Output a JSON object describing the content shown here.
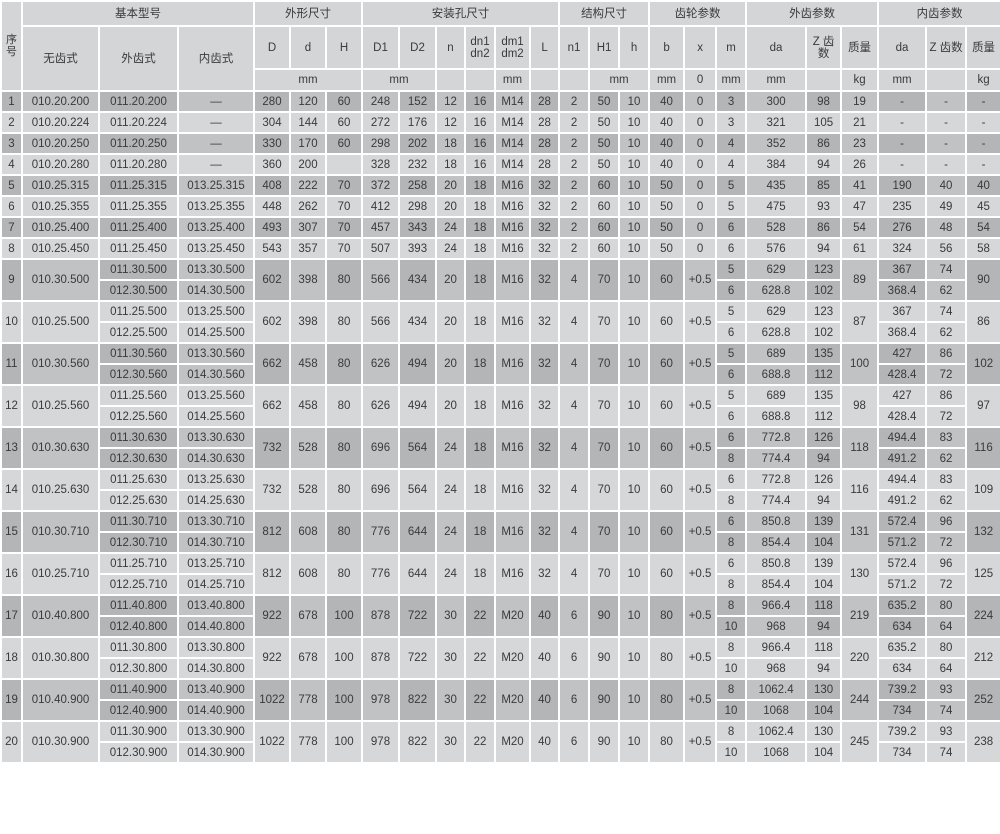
{
  "header": {
    "no": "序号",
    "groups": {
      "basic": "基本型号",
      "outline": "外形尺寸",
      "mounting": "安装孔尺寸",
      "structure": "结构尺寸",
      "gear": "齿轮参数",
      "external": "外齿参数",
      "internal": "内齿参数"
    },
    "cols": {
      "plain": "无齿式",
      "ext": "外齿式",
      "int": "内齿式",
      "D": "D",
      "d": "d",
      "H": "H",
      "D1": "D1",
      "D2": "D2",
      "n": "n",
      "dn": "dn1 dn2",
      "dm": "dm1 dm2",
      "L": "L",
      "n1": "n1",
      "H1": "H1",
      "h": "h",
      "b": "b",
      "x": "x",
      "m": "m",
      "eda": "da",
      "ez": "Z 齿数",
      "emass": "质量",
      "ida": "da",
      "iz": "Z 齿数",
      "imass": "质量"
    },
    "units": {
      "outline": "mm",
      "mounting": "mm",
      "dm": "mm",
      "structure": "mm",
      "b": "mm",
      "x": "0",
      "m": "mm",
      "eda": "mm",
      "emass": "kg",
      "ida": "mm",
      "imass": "kg"
    }
  },
  "rows": [
    {
      "no": "1",
      "plain": "010.20.200",
      "ext": [
        "011.20.200"
      ],
      "int": [
        "—"
      ],
      "D": "280",
      "d": "120",
      "H": "60",
      "D1": "248",
      "D2": "152",
      "n": "12",
      "dn": "16",
      "dm": "M14",
      "L": "28",
      "n1": "2",
      "H1": "50",
      "h": "10",
      "b": "40",
      "x": "0",
      "m": [
        "3"
      ],
      "eda": [
        "300"
      ],
      "ez": [
        "98"
      ],
      "emass": "19",
      "ida": [
        "-"
      ],
      "iz": [
        "-"
      ],
      "imass": "-"
    },
    {
      "no": "2",
      "plain": "010.20.224",
      "ext": [
        "011.20.224"
      ],
      "int": [
        "—"
      ],
      "D": "304",
      "d": "144",
      "H": "60",
      "D1": "272",
      "D2": "176",
      "n": "12",
      "dn": "16",
      "dm": "M14",
      "L": "28",
      "n1": "2",
      "H1": "50",
      "h": "10",
      "b": "40",
      "x": "0",
      "m": [
        "3"
      ],
      "eda": [
        "321"
      ],
      "ez": [
        "105"
      ],
      "emass": "21",
      "ida": [
        "-"
      ],
      "iz": [
        "-"
      ],
      "imass": "-"
    },
    {
      "no": "3",
      "plain": "010.20.250",
      "ext": [
        "011.20.250"
      ],
      "int": [
        "—"
      ],
      "D": "330",
      "d": "170",
      "H": "60",
      "D1": "298",
      "D2": "202",
      "n": "18",
      "dn": "16",
      "dm": "M14",
      "L": "28",
      "n1": "2",
      "H1": "50",
      "h": "10",
      "b": "40",
      "x": "0",
      "m": [
        "4"
      ],
      "eda": [
        "352"
      ],
      "ez": [
        "86"
      ],
      "emass": "23",
      "ida": [
        "-"
      ],
      "iz": [
        "-"
      ],
      "imass": "-"
    },
    {
      "no": "4",
      "plain": "010.20.280",
      "ext": [
        "011.20.280"
      ],
      "int": [
        "—"
      ],
      "D": "360",
      "d": "200",
      "H": "",
      "D1": "328",
      "D2": "232",
      "n": "18",
      "dn": "16",
      "dm": "M14",
      "L": "28",
      "n1": "2",
      "H1": "50",
      "h": "10",
      "b": "40",
      "x": "0",
      "m": [
        "4"
      ],
      "eda": [
        "384"
      ],
      "ez": [
        "94"
      ],
      "emass": "26",
      "ida": [
        "-"
      ],
      "iz": [
        "-"
      ],
      "imass": "-"
    },
    {
      "no": "5",
      "plain": "010.25.315",
      "ext": [
        "011.25.315"
      ],
      "int": [
        "013.25.315"
      ],
      "D": "408",
      "d": "222",
      "H": "70",
      "D1": "372",
      "D2": "258",
      "n": "20",
      "dn": "18",
      "dm": "M16",
      "L": "32",
      "n1": "2",
      "H1": "60",
      "h": "10",
      "b": "50",
      "x": "0",
      "m": [
        "5"
      ],
      "eda": [
        "435"
      ],
      "ez": [
        "85"
      ],
      "emass": "41",
      "ida": [
        "190"
      ],
      "iz": [
        "40"
      ],
      "imass": "40"
    },
    {
      "no": "6",
      "plain": "010.25.355",
      "ext": [
        "011.25.355"
      ],
      "int": [
        "013.25.355"
      ],
      "D": "448",
      "d": "262",
      "H": "70",
      "D1": "412",
      "D2": "298",
      "n": "20",
      "dn": "18",
      "dm": "M16",
      "L": "32",
      "n1": "2",
      "H1": "60",
      "h": "10",
      "b": "50",
      "x": "0",
      "m": [
        "5"
      ],
      "eda": [
        "475"
      ],
      "ez": [
        "93"
      ],
      "emass": "47",
      "ida": [
        "235"
      ],
      "iz": [
        "49"
      ],
      "imass": "45"
    },
    {
      "no": "7",
      "plain": "010.25.400",
      "ext": [
        "011.25.400"
      ],
      "int": [
        "013.25.400"
      ],
      "D": "493",
      "d": "307",
      "H": "70",
      "D1": "457",
      "D2": "343",
      "n": "24",
      "dn": "18",
      "dm": "M16",
      "L": "32",
      "n1": "2",
      "H1": "60",
      "h": "10",
      "b": "50",
      "x": "0",
      "m": [
        "6"
      ],
      "eda": [
        "528"
      ],
      "ez": [
        "86"
      ],
      "emass": "54",
      "ida": [
        "276"
      ],
      "iz": [
        "48"
      ],
      "imass": "54"
    },
    {
      "no": "8",
      "plain": "010.25.450",
      "ext": [
        "011.25.450"
      ],
      "int": [
        "013.25.450"
      ],
      "D": "543",
      "d": "357",
      "H": "70",
      "D1": "507",
      "D2": "393",
      "n": "24",
      "dn": "18",
      "dm": "M16",
      "L": "32",
      "n1": "2",
      "H1": "60",
      "h": "10",
      "b": "50",
      "x": "0",
      "m": [
        "6"
      ],
      "eda": [
        "576"
      ],
      "ez": [
        "94"
      ],
      "emass": "61",
      "ida": [
        "324"
      ],
      "iz": [
        "56"
      ],
      "imass": "58"
    },
    {
      "no": "9",
      "plain": "010.30.500",
      "ext": [
        "011.30.500",
        "012.30.500"
      ],
      "int": [
        "013.30.500",
        "014.30.500"
      ],
      "D": "602",
      "d": "398",
      "H": "80",
      "D1": "566",
      "D2": "434",
      "n": "20",
      "dn": "18",
      "dm": "M16",
      "L": "32",
      "n1": "4",
      "H1": "70",
      "h": "10",
      "b": "60",
      "x": "+0.5",
      "m": [
        "5",
        "6"
      ],
      "eda": [
        "629",
        "628.8"
      ],
      "ez": [
        "123",
        "102"
      ],
      "emass": "89",
      "ida": [
        "367",
        "368.4"
      ],
      "iz": [
        "74",
        "62"
      ],
      "imass": "90"
    },
    {
      "no": "10",
      "plain": "010.25.500",
      "ext": [
        "011.25.500",
        "012.25.500"
      ],
      "int": [
        "013.25.500",
        "014.25.500"
      ],
      "D": "602",
      "d": "398",
      "H": "80",
      "D1": "566",
      "D2": "434",
      "n": "20",
      "dn": "18",
      "dm": "M16",
      "L": "32",
      "n1": "4",
      "H1": "70",
      "h": "10",
      "b": "60",
      "x": "+0.5",
      "m": [
        "5",
        "6"
      ],
      "eda": [
        "629",
        "628.8"
      ],
      "ez": [
        "123",
        "102"
      ],
      "emass": "87",
      "ida": [
        "367",
        "368.4"
      ],
      "iz": [
        "74",
        "62"
      ],
      "imass": "86"
    },
    {
      "no": "11",
      "plain": "010.30.560",
      "ext": [
        "011.30.560",
        "012.30.560"
      ],
      "int": [
        "013.30.560",
        "014.30.560"
      ],
      "D": "662",
      "d": "458",
      "H": "80",
      "D1": "626",
      "D2": "494",
      "n": "20",
      "dn": "18",
      "dm": "M16",
      "L": "32",
      "n1": "4",
      "H1": "70",
      "h": "10",
      "b": "60",
      "x": "+0.5",
      "m": [
        "5",
        "6"
      ],
      "eda": [
        "689",
        "688.8"
      ],
      "ez": [
        "135",
        "112"
      ],
      "emass": "100",
      "ida": [
        "427",
        "428.4"
      ],
      "iz": [
        "86",
        "72"
      ],
      "imass": "102"
    },
    {
      "no": "12",
      "plain": "010.25.560",
      "ext": [
        "011.25.560",
        "012.25.560"
      ],
      "int": [
        "013.25.560",
        "014.25.560"
      ],
      "D": "662",
      "d": "458",
      "H": "80",
      "D1": "626",
      "D2": "494",
      "n": "20",
      "dn": "18",
      "dm": "M16",
      "L": "32",
      "n1": "4",
      "H1": "70",
      "h": "10",
      "b": "60",
      "x": "+0.5",
      "m": [
        "5",
        "6"
      ],
      "eda": [
        "689",
        "688.8"
      ],
      "ez": [
        "135",
        "112"
      ],
      "emass": "98",
      "ida": [
        "427",
        "428.4"
      ],
      "iz": [
        "86",
        "72"
      ],
      "imass": "97"
    },
    {
      "no": "13",
      "plain": "010.30.630",
      "ext": [
        "011.30.630",
        "012.30.630"
      ],
      "int": [
        "013.30.630",
        "014.30.630"
      ],
      "D": "732",
      "d": "528",
      "H": "80",
      "D1": "696",
      "D2": "564",
      "n": "24",
      "dn": "18",
      "dm": "M16",
      "L": "32",
      "n1": "4",
      "H1": "70",
      "h": "10",
      "b": "60",
      "x": "+0.5",
      "m": [
        "6",
        "8"
      ],
      "eda": [
        "772.8",
        "774.4"
      ],
      "ez": [
        "126",
        "94"
      ],
      "emass": "118",
      "ida": [
        "494.4",
        "491.2"
      ],
      "iz": [
        "83",
        "62"
      ],
      "imass": "116"
    },
    {
      "no": "14",
      "plain": "010.25.630",
      "ext": [
        "011.25.630",
        "012.25.630"
      ],
      "int": [
        "013.25.630",
        "014.25.630"
      ],
      "D": "732",
      "d": "528",
      "H": "80",
      "D1": "696",
      "D2": "564",
      "n": "24",
      "dn": "18",
      "dm": "M16",
      "L": "32",
      "n1": "4",
      "H1": "70",
      "h": "10",
      "b": "60",
      "x": "+0.5",
      "m": [
        "6",
        "8"
      ],
      "eda": [
        "772.8",
        "774.4"
      ],
      "ez": [
        "126",
        "94"
      ],
      "emass": "116",
      "ida": [
        "494.4",
        "491.2"
      ],
      "iz": [
        "83",
        "62"
      ],
      "imass": "109"
    },
    {
      "no": "15",
      "plain": "010.30.710",
      "ext": [
        "011.30.710",
        "012.30.710"
      ],
      "int": [
        "013.30.710",
        "014.30.710"
      ],
      "D": "812",
      "d": "608",
      "H": "80",
      "D1": "776",
      "D2": "644",
      "n": "24",
      "dn": "18",
      "dm": "M16",
      "L": "32",
      "n1": "4",
      "H1": "70",
      "h": "10",
      "b": "60",
      "x": "+0.5",
      "m": [
        "6",
        "8"
      ],
      "eda": [
        "850.8",
        "854.4"
      ],
      "ez": [
        "139",
        "104"
      ],
      "emass": "131",
      "ida": [
        "572.4",
        "571.2"
      ],
      "iz": [
        "96",
        "72"
      ],
      "imass": "132"
    },
    {
      "no": "16",
      "plain": "010.25.710",
      "ext": [
        "011.25.710",
        "012.25.710"
      ],
      "int": [
        "013.25.710",
        "014.25.710"
      ],
      "D": "812",
      "d": "608",
      "H": "80",
      "D1": "776",
      "D2": "644",
      "n": "24",
      "dn": "18",
      "dm": "M16",
      "L": "32",
      "n1": "4",
      "H1": "70",
      "h": "10",
      "b": "60",
      "x": "+0.5",
      "m": [
        "6",
        "8"
      ],
      "eda": [
        "850.8",
        "854.4"
      ],
      "ez": [
        "139",
        "104"
      ],
      "emass": "130",
      "ida": [
        "572.4",
        "571.2"
      ],
      "iz": [
        "96",
        "72"
      ],
      "imass": "125"
    },
    {
      "no": "17",
      "plain": "010.40.800",
      "ext": [
        "011.40.800",
        "012.40.800"
      ],
      "int": [
        "013.40.800",
        "014.40.800"
      ],
      "D": "922",
      "d": "678",
      "H": "100",
      "D1": "878",
      "D2": "722",
      "n": "30",
      "dn": "22",
      "dm": "M20",
      "L": "40",
      "n1": "6",
      "H1": "90",
      "h": "10",
      "b": "80",
      "x": "+0.5",
      "m": [
        "8",
        "10"
      ],
      "eda": [
        "966.4",
        "968"
      ],
      "ez": [
        "118",
        "94"
      ],
      "emass": "219",
      "ida": [
        "635.2",
        "634"
      ],
      "iz": [
        "80",
        "64"
      ],
      "imass": "224"
    },
    {
      "no": "18",
      "plain": "010.30.800",
      "ext": [
        "011.30.800",
        "012.30.800"
      ],
      "int": [
        "013.30.800",
        "014.30.800"
      ],
      "D": "922",
      "d": "678",
      "H": "100",
      "D1": "878",
      "D2": "722",
      "n": "30",
      "dn": "22",
      "dm": "M20",
      "L": "40",
      "n1": "6",
      "H1": "90",
      "h": "10",
      "b": "80",
      "x": "+0.5",
      "m": [
        "8",
        "10"
      ],
      "eda": [
        "966.4",
        "968"
      ],
      "ez": [
        "118",
        "94"
      ],
      "emass": "220",
      "ida": [
        "635.2",
        "634"
      ],
      "iz": [
        "80",
        "64"
      ],
      "imass": "212"
    },
    {
      "no": "19",
      "plain": "010.40.900",
      "ext": [
        "011.40.900",
        "012.40.900"
      ],
      "int": [
        "013.40.900",
        "014.40.900"
      ],
      "D": "1022",
      "d": "778",
      "H": "100",
      "D1": "978",
      "D2": "822",
      "n": "30",
      "dn": "22",
      "dm": "M20",
      "L": "40",
      "n1": "6",
      "H1": "90",
      "h": "10",
      "b": "80",
      "x": "+0.5",
      "m": [
        "8",
        "10"
      ],
      "eda": [
        "1062.4",
        "1068"
      ],
      "ez": [
        "130",
        "104"
      ],
      "emass": "244",
      "ida": [
        "739.2",
        "734"
      ],
      "iz": [
        "93",
        "74"
      ],
      "imass": "252"
    },
    {
      "no": "20",
      "plain": "010.30.900",
      "ext": [
        "011.30.900",
        "012.30.900"
      ],
      "int": [
        "013.30.900",
        "014.30.900"
      ],
      "D": "1022",
      "d": "778",
      "H": "100",
      "D1": "978",
      "D2": "822",
      "n": "30",
      "dn": "22",
      "dm": "M20",
      "L": "40",
      "n1": "6",
      "H1": "90",
      "h": "10",
      "b": "80",
      "x": "+0.5",
      "m": [
        "8",
        "10"
      ],
      "eda": [
        "1062.4",
        "1068"
      ],
      "ez": [
        "130",
        "104"
      ],
      "emass": "245",
      "ida": [
        "739.2",
        "734"
      ],
      "iz": [
        "93",
        "74"
      ],
      "imass": "238"
    }
  ]
}
